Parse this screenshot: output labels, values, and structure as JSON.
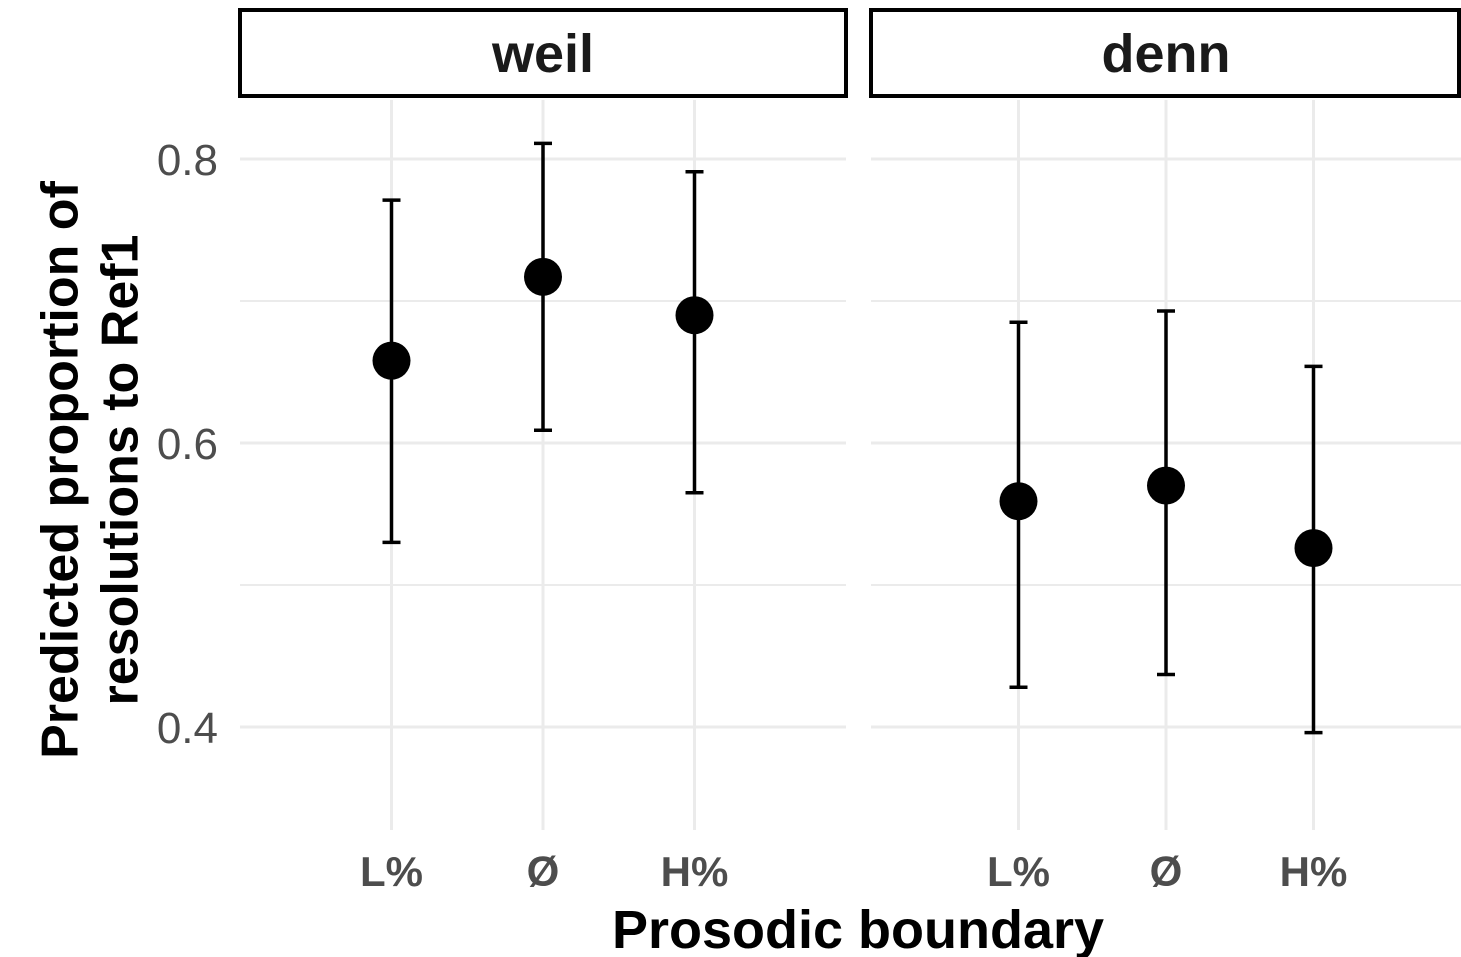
{
  "chart_data": {
    "type": "scatter",
    "facets": [
      {
        "label": "weil",
        "categories": [
          "L%",
          "Ø",
          "H%"
        ],
        "estimates": [
          0.658,
          0.717,
          0.69
        ],
        "lower": [
          0.53,
          0.609,
          0.565
        ],
        "upper": [
          0.771,
          0.811,
          0.791
        ]
      },
      {
        "label": "denn",
        "categories": [
          "L%",
          "Ø",
          "H%"
        ],
        "estimates": [
          0.559,
          0.57,
          0.526
        ],
        "lower": [
          0.428,
          0.437,
          0.396
        ],
        "upper": [
          0.685,
          0.693,
          0.654
        ]
      }
    ],
    "xlabel": "Prosodic boundary",
    "ylabel_lines": [
      "Predicted proportion of",
      "resolutions to Ref1"
    ],
    "yticks": [
      0.4,
      0.6,
      0.8
    ],
    "ytick_labels": [
      "0.4",
      "0.6",
      "0.8"
    ],
    "yminor": [
      0.5,
      0.7
    ],
    "ylim": [
      0.33,
      0.87
    ],
    "grid": true,
    "legend": "none",
    "colors": {
      "point": "#000000",
      "grid": "#ebebeb",
      "tick_label": "#4d4d4d",
      "strip_border": "#000000",
      "strip_fill": "#ffffff"
    }
  }
}
